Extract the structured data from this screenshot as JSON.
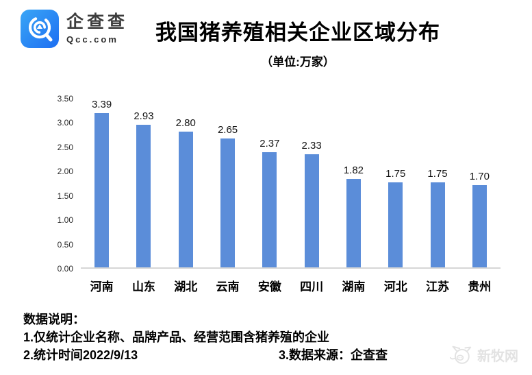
{
  "logo": {
    "name": "企查查",
    "domain": "Qcc.com",
    "icon_color": "#2b7df3"
  },
  "header": {
    "title": "我国猪养殖相关企业区域分布",
    "subtitle": "（单位:万家）"
  },
  "chart_data": {
    "type": "bar",
    "title": "我国猪养殖相关企业区域分布",
    "unit_label": "（单位:万家）",
    "categories": [
      "河南",
      "山东",
      "湖北",
      "云南",
      "安徽",
      "四川",
      "湖南",
      "河北",
      "江苏",
      "贵州"
    ],
    "values": [
      3.39,
      2.93,
      2.8,
      2.65,
      2.37,
      2.33,
      1.82,
      1.75,
      1.75,
      1.7
    ],
    "value_labels": [
      "3.39",
      "2.93",
      "2.80",
      "2.65",
      "2.37",
      "2.33",
      "1.82",
      "1.75",
      "1.75",
      "1.70"
    ],
    "y_ticks": [
      "3.50",
      "3.00",
      "2.50",
      "2.00",
      "1.50",
      "1.00",
      "0.50",
      "0.00"
    ],
    "ylim": [
      0,
      3.5
    ],
    "xlabel": "",
    "ylabel": "",
    "grid": false,
    "legend": false,
    "bar_color": "#5b8dd9",
    "baseline_color": "#d6d6d6"
  },
  "notes": {
    "heading": "数据说明：",
    "line1": "1.仅统计企业名称、品牌产品、经营范围含猪养殖的企业",
    "line2": "2.统计时间2022/9/13",
    "line3": "3.数据来源：企查查"
  },
  "watermark": {
    "text": "新牧网"
  }
}
